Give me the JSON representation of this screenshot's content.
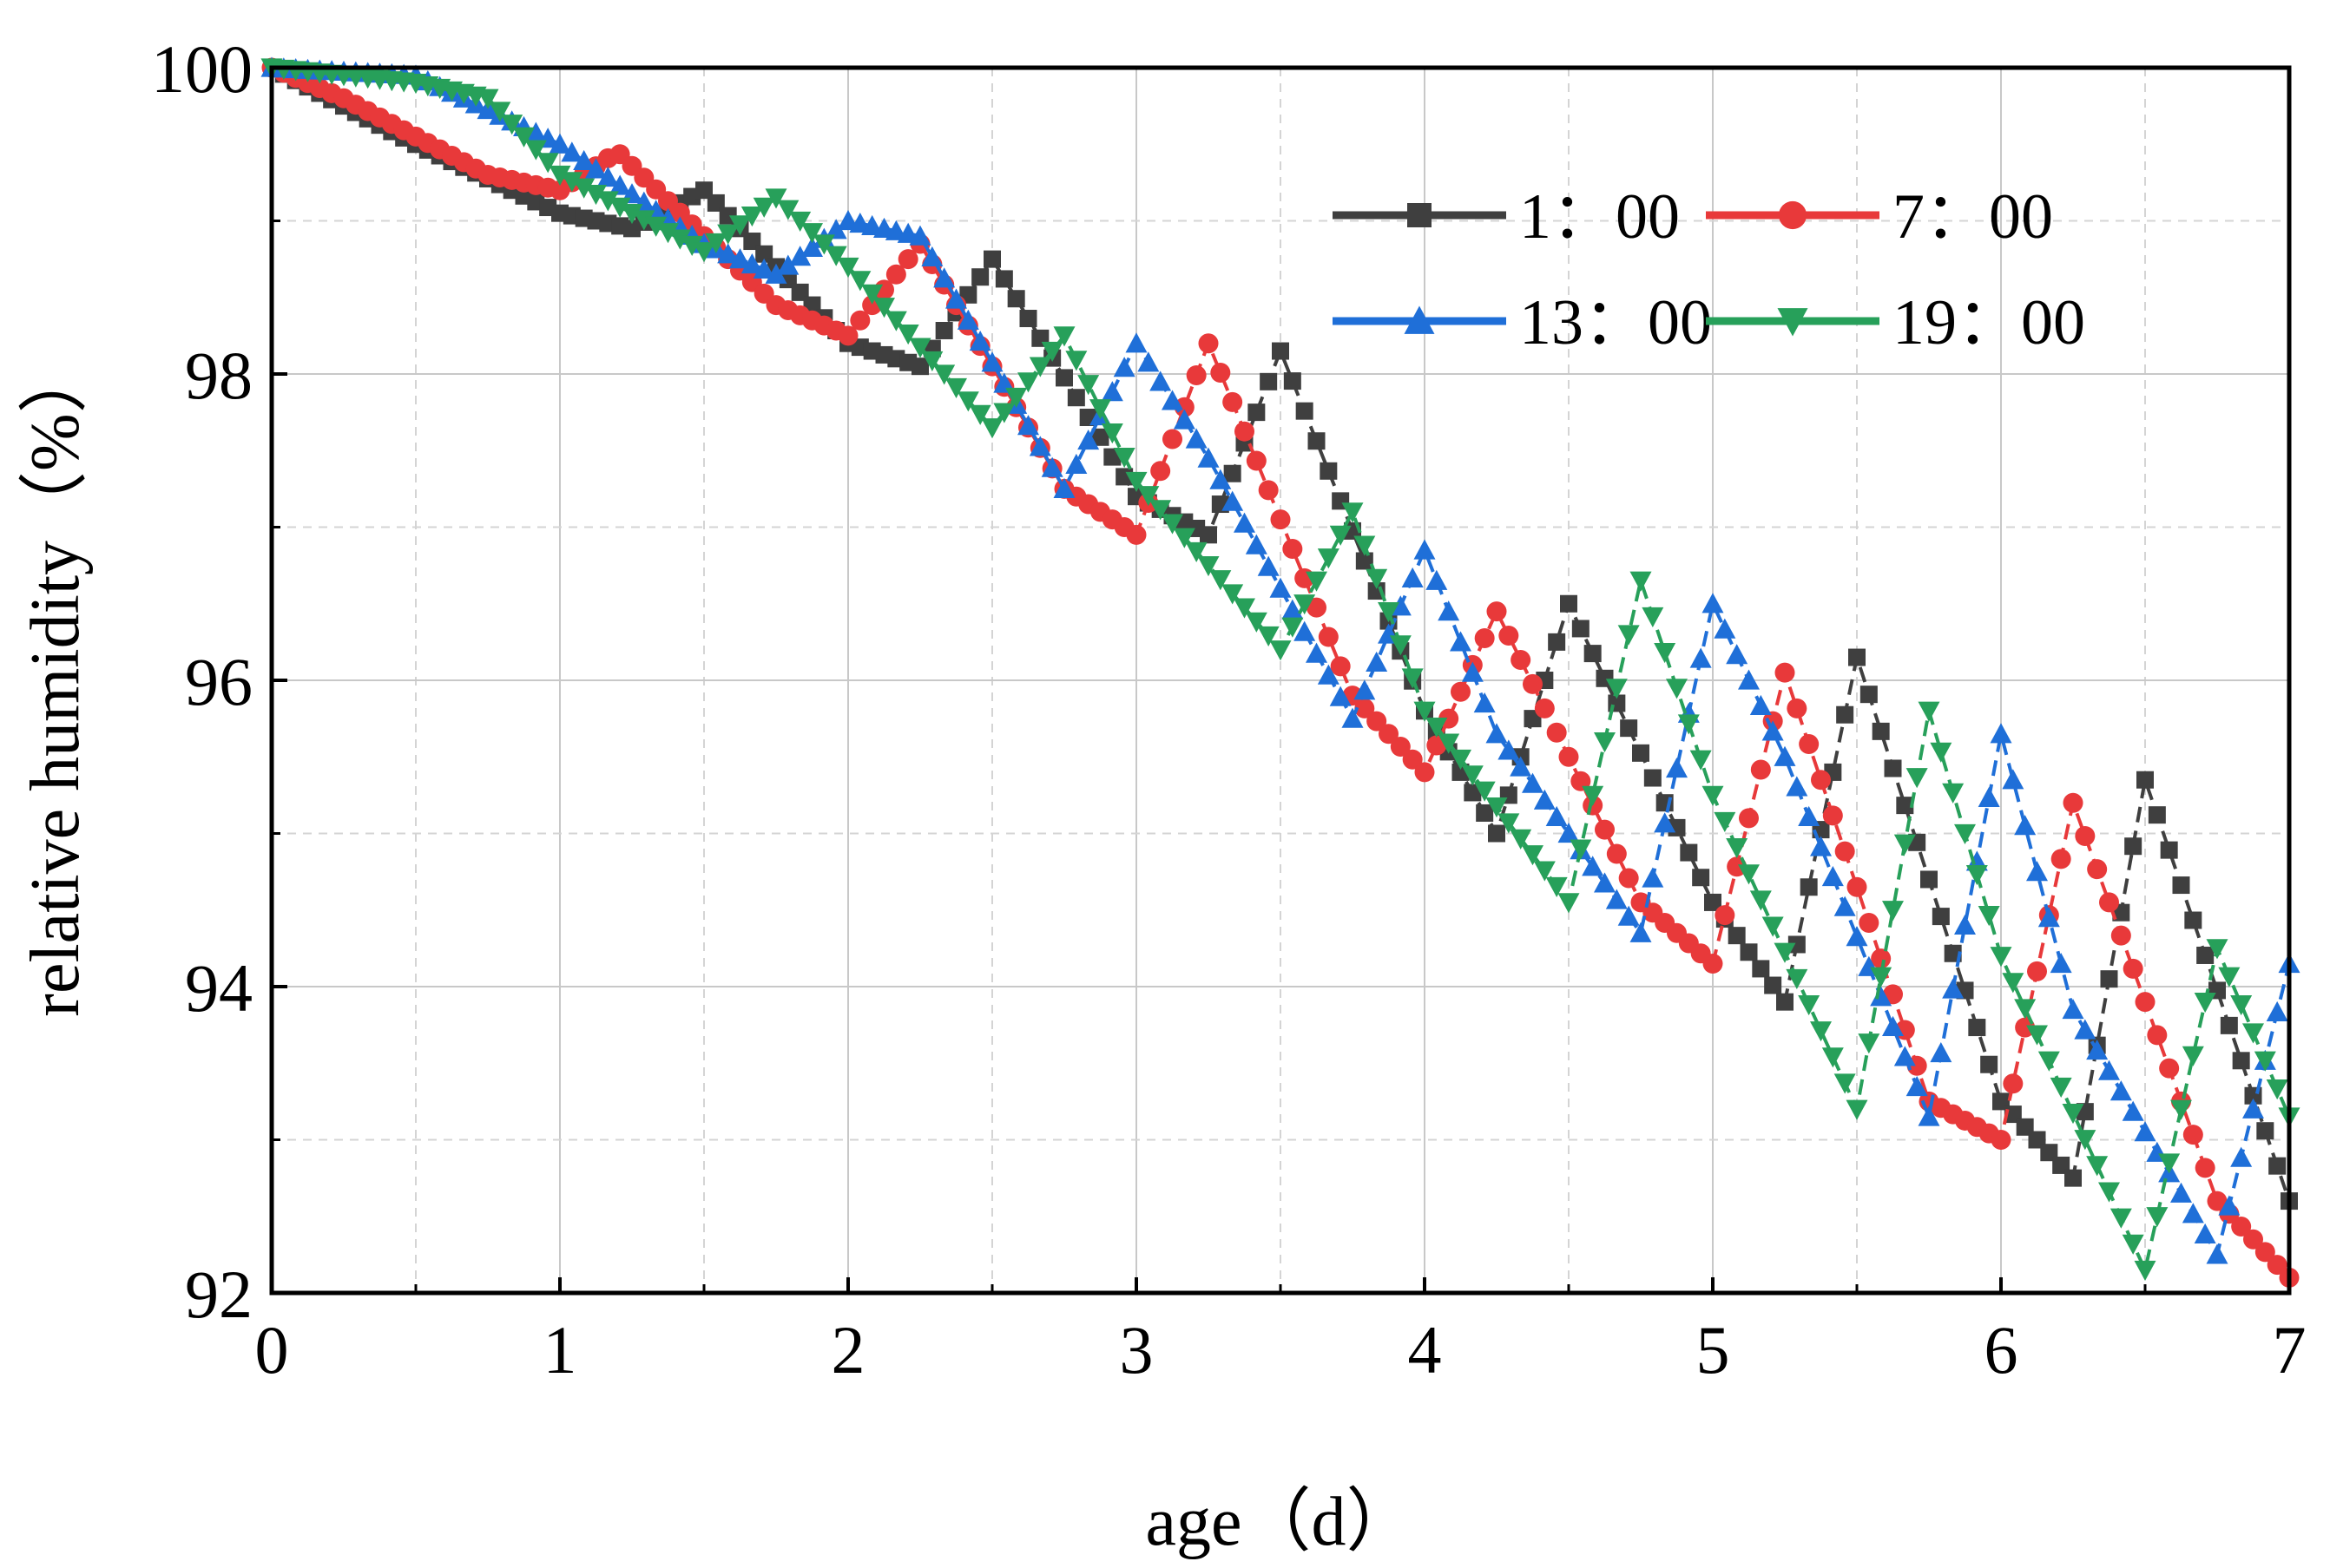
{
  "chart_data": {
    "type": "line",
    "xlabel": "age（d）",
    "ylabel": "relative humidity（%）",
    "xlim": [
      0,
      7
    ],
    "ylim": [
      92,
      100
    ],
    "x_ticks": [
      "0",
      "1",
      "2",
      "3",
      "4",
      "5",
      "6",
      "7"
    ],
    "y_ticks": [
      "92",
      "94",
      "96",
      "98",
      "100"
    ],
    "grid": true,
    "legend_position": "top-right",
    "series": [
      {
        "name": "1：00",
        "color": "#3f3f3f",
        "marker": "square",
        "x": [
          0,
          0.5,
          1.0,
          1.25,
          1.5,
          2.0,
          2.25,
          2.5,
          3.0,
          3.25,
          3.5,
          4.0,
          4.25,
          4.5,
          5.0,
          5.25,
          5.5,
          6.0,
          6.25,
          6.5,
          7.0
        ],
        "y": [
          100,
          99.5,
          99.05,
          98.95,
          99.2,
          98.2,
          98.05,
          98.75,
          97.2,
          96.95,
          98.15,
          95.8,
          95.0,
          96.5,
          94.55,
          93.9,
          96.15,
          93.25,
          92.75,
          95.35,
          92.6
        ]
      },
      {
        "name": "7：00",
        "color": "#e8393a",
        "marker": "circle",
        "x": [
          0,
          0.25,
          0.75,
          1.0,
          1.2,
          1.5,
          1.75,
          2.0,
          2.25,
          2.75,
          3.0,
          3.25,
          3.75,
          4.0,
          4.25,
          4.75,
          5.0,
          5.25,
          5.75,
          6.0,
          6.25,
          6.75,
          7.0
        ],
        "y": [
          100,
          99.8,
          99.3,
          99.2,
          99.45,
          98.9,
          98.45,
          98.25,
          98.85,
          97.25,
          96.95,
          98.2,
          95.9,
          95.4,
          96.45,
          94.55,
          94.15,
          96.05,
          93.25,
          93.0,
          95.2,
          92.6,
          92.1
        ]
      },
      {
        "name": "13：00",
        "color": "#1f6fd8",
        "marker": "triangle-up",
        "x": [
          0,
          0.5,
          1.0,
          1.5,
          1.75,
          2.0,
          2.25,
          2.75,
          3.0,
          3.25,
          3.75,
          4.0,
          4.25,
          4.75,
          5.0,
          5.25,
          5.75,
          6.0,
          6.25,
          6.75,
          7.0
        ],
        "y": [
          100,
          99.95,
          99.5,
          98.85,
          98.65,
          99.0,
          98.9,
          97.25,
          98.2,
          97.45,
          95.75,
          96.85,
          95.65,
          94.35,
          96.5,
          95.5,
          93.15,
          95.65,
          93.85,
          92.25,
          94.15
        ]
      },
      {
        "name": "19：00",
        "color": "#27a05a",
        "marker": "triangle-down",
        "x": [
          0,
          0.5,
          0.75,
          1.0,
          1.5,
          1.75,
          2.0,
          2.5,
          2.75,
          3.0,
          3.5,
          3.75,
          4.0,
          4.5,
          4.75,
          5.0,
          5.5,
          5.75,
          6.0,
          6.5,
          6.75,
          7.0
        ],
        "y": [
          100,
          99.9,
          99.8,
          99.3,
          98.8,
          99.15,
          98.7,
          97.65,
          98.25,
          97.3,
          96.2,
          97.1,
          95.8,
          94.55,
          96.65,
          95.25,
          93.2,
          95.8,
          94.2,
          92.15,
          94.25,
          93.15
        ]
      }
    ]
  }
}
